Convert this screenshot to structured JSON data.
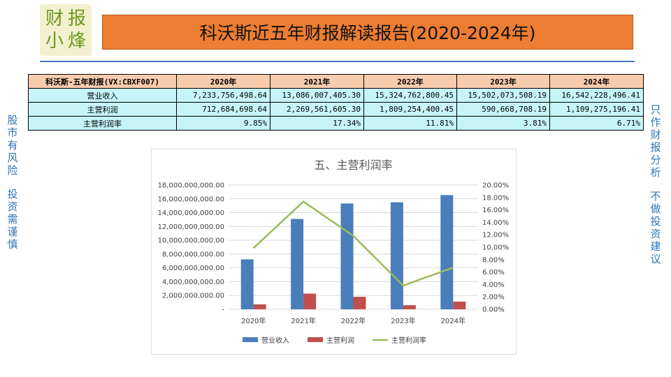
{
  "logo": {
    "chars": [
      "财",
      "报",
      "小",
      "烽"
    ]
  },
  "title": "科沃斯近五年财报解读报告(2020-2024年)",
  "side_left": [
    "股",
    "市",
    "有",
    "风",
    "险",
    "",
    "投",
    "资",
    "需",
    "谨",
    "慎"
  ],
  "side_right": [
    "只",
    "作",
    "财",
    "报",
    "分",
    "析",
    "",
    "不",
    "做",
    "投",
    "资",
    "建",
    "议"
  ],
  "table": {
    "header_label": "科沃斯-五年财报(VX:CBXF007)",
    "years": [
      "2020年",
      "2021年",
      "2022年",
      "2023年",
      "2024年"
    ],
    "rows": [
      {
        "label": "营业收入",
        "values": [
          "7,233,756,498.64",
          "13,086,007,405.30",
          "15,324,762,800.45",
          "15,502,073,508.19",
          "16,542,228,496.41"
        ]
      },
      {
        "label": "主营利润",
        "values": [
          "712,684,698.64",
          "2,269,561,605.30",
          "1,809,254,400.45",
          "590,668,708.19",
          "1,109,275,196.41"
        ]
      },
      {
        "label": "主营利润率",
        "values": [
          "9.85%",
          "17.34%",
          "11.81%",
          "3.81%",
          "6.71%"
        ]
      }
    ]
  },
  "chart_data": {
    "type": "bar",
    "title": "五、主营利润率",
    "categories": [
      "2020年",
      "2021年",
      "2022年",
      "2023年",
      "2024年"
    ],
    "series": [
      {
        "name": "营业收入",
        "kind": "bar",
        "axis": "left",
        "color": "#4a7ebb",
        "values": [
          7233756498.64,
          13086007405.3,
          15324762800.45,
          15502073508.19,
          16542228496.41
        ]
      },
      {
        "name": "主营利润",
        "kind": "bar",
        "axis": "left",
        "color": "#c0504d",
        "values": [
          712684698.64,
          2269561605.3,
          1809254400.45,
          590668708.19,
          1109275196.41
        ]
      },
      {
        "name": "主营利润率",
        "kind": "line",
        "axis": "right",
        "color": "#9bbb59",
        "values": [
          9.85,
          17.34,
          11.81,
          3.81,
          6.71
        ]
      }
    ],
    "y_left": {
      "min": 0,
      "max": 18000000000,
      "ticks": [
        "-",
        "2,000,000,000.00",
        "4,000,000,000.00",
        "6,000,000,000.00",
        "8,000,000,000.00",
        "10,000,000,000.00",
        "12,000,000,000.00",
        "14,000,000,000.00",
        "16,000,000,000.00",
        "18,000,000,000.00"
      ]
    },
    "y_right": {
      "min": 0,
      "max": 20,
      "ticks": [
        "0.00%",
        "2.00%",
        "4.00%",
        "6.00%",
        "8.00%",
        "10.00%",
        "12.00%",
        "14.00%",
        "16.00%",
        "18.00%",
        "20.00%"
      ]
    },
    "grid": true,
    "legend": "bottom"
  }
}
